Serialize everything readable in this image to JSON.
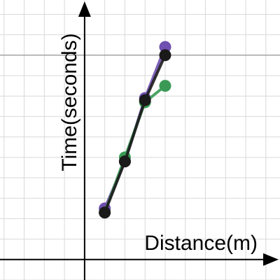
{
  "chart_data": {
    "type": "line",
    "title": "",
    "xlabel": "Distance(m)",
    "ylabel": "Time(seconds)",
    "xlim": [
      -2.1,
      4.85
    ],
    "ylim": [
      -0.5,
      6.35
    ],
    "grid": true,
    "grid_step": 0.5,
    "reference_line": {
      "y": 5.0
    },
    "series": [
      {
        "name": "",
        "color": "#6f4fb0",
        "x": [
          0.5,
          1.0,
          1.5,
          2.0
        ],
        "y": [
          1.25,
          2.4,
          3.95,
          5.2
        ]
      },
      {
        "name": "",
        "color": "#3a9a55",
        "x": [
          0.5,
          1.0,
          1.5,
          2.0
        ],
        "y": [
          1.15,
          2.5,
          3.85,
          4.25
        ]
      },
      {
        "name": "",
        "color": "#1a1a1a",
        "x": [
          0.5,
          1.0,
          1.5,
          2.0
        ],
        "y": [
          1.15,
          2.4,
          3.9,
          5.0
        ]
      }
    ]
  }
}
